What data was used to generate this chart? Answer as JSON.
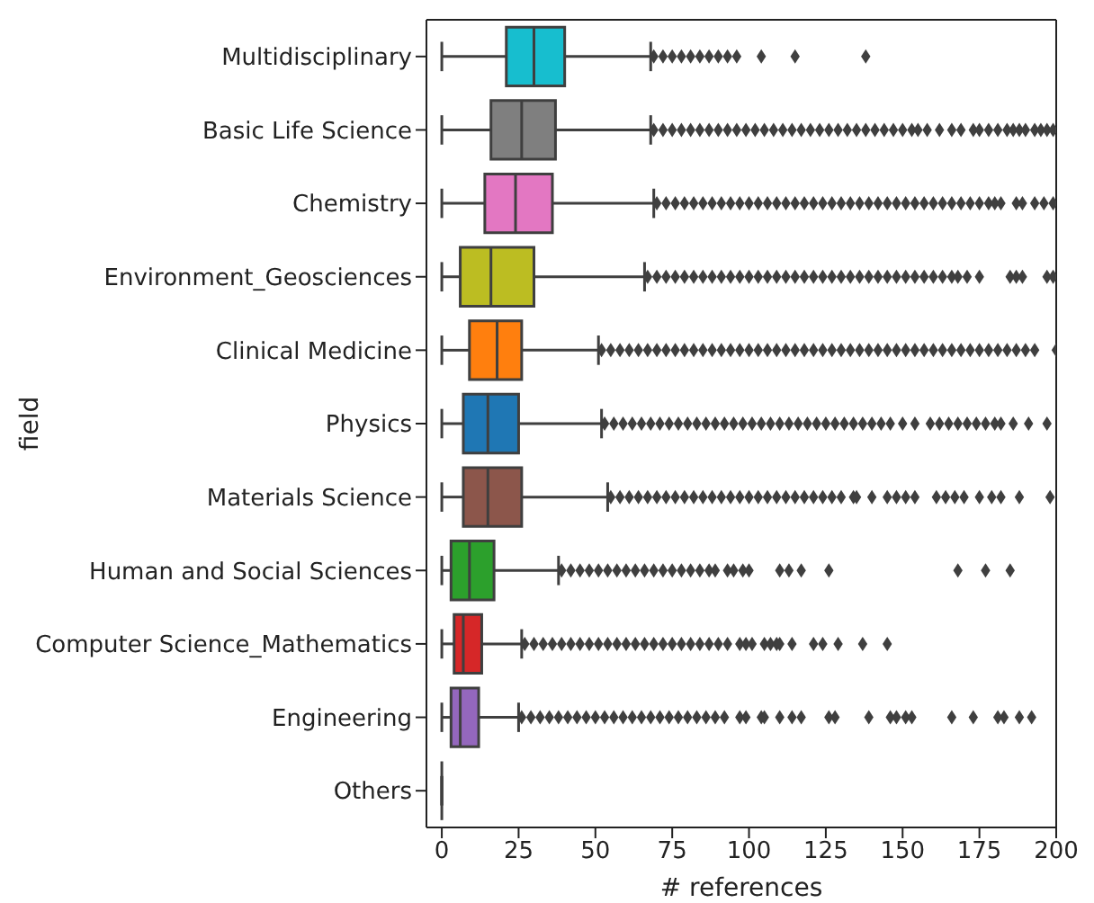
{
  "chart_data": {
    "type": "box",
    "orientation": "horizontal",
    "xlabel": "# references",
    "ylabel": "field",
    "xlim": [
      -5,
      200
    ],
    "xticks": [
      0,
      25,
      50,
      75,
      100,
      125,
      150,
      175,
      200
    ],
    "marker": "diamond",
    "categories": [
      "Multidisciplinary",
      "Basic Life Science",
      "Chemistry",
      "Environment_Geosciences",
      "Clinical Medicine",
      "Physics",
      "Materials Science",
      "Human and Social Sciences",
      "Computer Science_Mathematics",
      "Engineering",
      "Others"
    ],
    "colors": [
      "#17becf",
      "#7f7f7f",
      "#e377c2",
      "#bcbd22",
      "#ff7f0e",
      "#1f77b4",
      "#8c564b",
      "#2ca02c",
      "#d62728",
      "#9467bd",
      "#3f3f3f"
    ],
    "boxes": [
      {
        "low": 0,
        "q1": 21,
        "median": 30,
        "q3": 40,
        "high": 68,
        "outliers": [
          69,
          72,
          75,
          78,
          81,
          84,
          87,
          90,
          93,
          96,
          104,
          115,
          138
        ]
      },
      {
        "low": 0,
        "q1": 16,
        "median": 26,
        "q3": 37,
        "high": 68,
        "outliers": [
          69,
          72,
          75,
          78,
          81,
          84,
          87,
          90,
          93,
          96,
          99,
          102,
          105,
          108,
          111,
          114,
          117,
          120,
          123,
          126,
          129,
          132,
          135,
          138,
          141,
          144,
          147,
          150,
          153,
          155,
          158,
          162,
          166,
          169,
          173,
          175,
          178,
          181,
          184,
          186,
          188,
          190,
          193,
          195,
          197,
          199
        ]
      },
      {
        "low": 0,
        "q1": 14,
        "median": 24,
        "q3": 36,
        "high": 69,
        "outliers": [
          70,
          73,
          76,
          79,
          82,
          85,
          88,
          91,
          94,
          97,
          100,
          103,
          106,
          109,
          112,
          115,
          118,
          121,
          124,
          127,
          130,
          133,
          136,
          139,
          142,
          145,
          148,
          151,
          154,
          157,
          160,
          163,
          166,
          169,
          172,
          175,
          178,
          180,
          182,
          187,
          189,
          193,
          196,
          199
        ]
      },
      {
        "low": 0,
        "q1": 6,
        "median": 16,
        "q3": 30,
        "high": 66,
        "outliers": [
          67,
          70,
          73,
          76,
          79,
          82,
          85,
          88,
          91,
          94,
          97,
          100,
          103,
          106,
          109,
          112,
          115,
          118,
          121,
          124,
          127,
          130,
          133,
          136,
          139,
          142,
          145,
          148,
          151,
          154,
          157,
          160,
          163,
          166,
          168,
          171,
          175,
          185,
          187,
          189,
          197,
          199
        ]
      },
      {
        "low": 0,
        "q1": 9,
        "median": 18,
        "q3": 26,
        "high": 51,
        "outliers": [
          52,
          55,
          58,
          61,
          64,
          67,
          70,
          73,
          76,
          79,
          82,
          85,
          88,
          91,
          94,
          97,
          100,
          103,
          106,
          109,
          112,
          115,
          118,
          121,
          124,
          127,
          130,
          133,
          136,
          139,
          142,
          145,
          148,
          151,
          154,
          157,
          160,
          163,
          166,
          169,
          172,
          175,
          178,
          181,
          184,
          187,
          190,
          193,
          200
        ]
      },
      {
        "low": 0,
        "q1": 7,
        "median": 15,
        "q3": 25,
        "high": 52,
        "outliers": [
          53,
          56,
          59,
          62,
          65,
          68,
          71,
          74,
          77,
          80,
          83,
          86,
          89,
          92,
          95,
          98,
          101,
          104,
          107,
          110,
          113,
          116,
          119,
          122,
          125,
          128,
          131,
          134,
          137,
          140,
          143,
          146,
          150,
          154,
          159,
          162,
          165,
          168,
          171,
          174,
          177,
          180,
          182,
          186,
          191,
          197
        ]
      },
      {
        "low": 0,
        "q1": 7,
        "median": 15,
        "q3": 26,
        "high": 54,
        "outliers": [
          55,
          58,
          61,
          64,
          67,
          70,
          73,
          76,
          79,
          82,
          85,
          88,
          91,
          94,
          97,
          100,
          103,
          106,
          109,
          112,
          115,
          118,
          121,
          124,
          127,
          130,
          134,
          135,
          140,
          145,
          148,
          151,
          154,
          161,
          164,
          167,
          170,
          175,
          179,
          182,
          188,
          198
        ]
      },
      {
        "low": 0,
        "q1": 3,
        "median": 9,
        "q3": 17,
        "high": 38,
        "outliers": [
          39,
          42,
          45,
          48,
          51,
          54,
          57,
          60,
          63,
          66,
          69,
          72,
          75,
          78,
          81,
          84,
          87,
          89,
          93,
          95,
          98,
          100,
          110,
          113,
          117,
          126,
          168,
          177,
          185
        ]
      },
      {
        "low": 0,
        "q1": 4,
        "median": 7,
        "q3": 13,
        "high": 26,
        "outliers": [
          27,
          30,
          33,
          36,
          39,
          42,
          45,
          48,
          51,
          54,
          57,
          60,
          63,
          66,
          69,
          72,
          75,
          78,
          81,
          84,
          87,
          90,
          93,
          97,
          99,
          101,
          105,
          107,
          109,
          110,
          114,
          121,
          124,
          129,
          137,
          145
        ]
      },
      {
        "low": 0,
        "q1": 3,
        "median": 6,
        "q3": 12,
        "high": 25,
        "outliers": [
          26,
          29,
          32,
          35,
          38,
          41,
          44,
          47,
          50,
          53,
          56,
          59,
          62,
          65,
          68,
          71,
          74,
          77,
          80,
          83,
          86,
          89,
          92,
          97,
          99,
          104,
          105,
          110,
          114,
          117,
          126,
          128,
          139,
          146,
          148,
          151,
          153,
          166,
          173,
          181,
          183,
          188,
          192
        ]
      },
      {
        "low": 0,
        "q1": 0,
        "median": 0,
        "q3": 0,
        "high": 0
      }
    ]
  }
}
